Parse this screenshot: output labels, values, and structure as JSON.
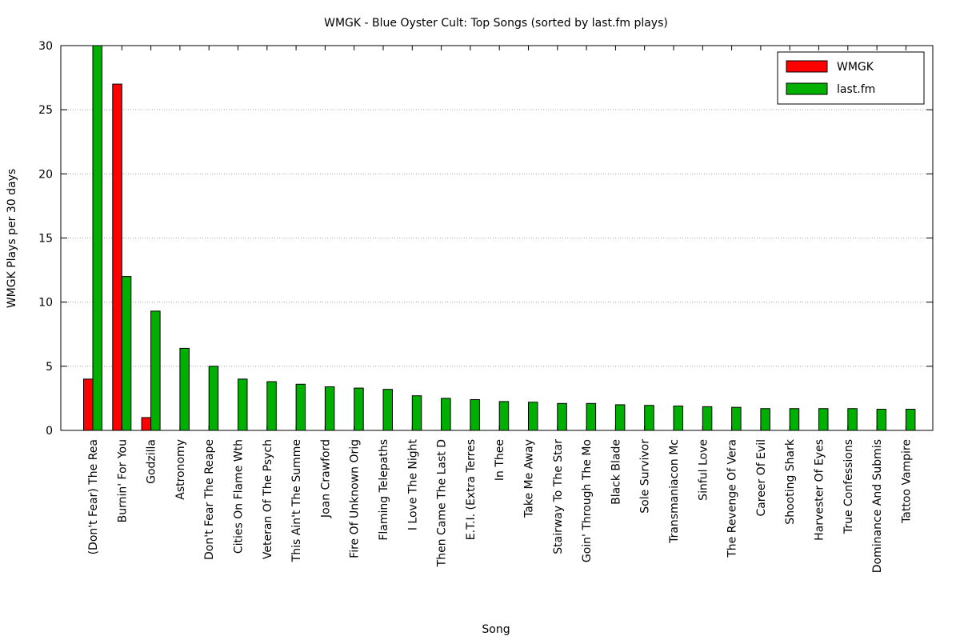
{
  "chart_data": {
    "type": "bar",
    "title": "WMGK - Blue Oyster Cult: Top Songs (sorted by last.fm plays)",
    "xlabel": "Song",
    "ylabel": "WMGK Plays per 30 days",
    "ylim": [
      0,
      30
    ],
    "yticks": [
      0,
      5,
      10,
      15,
      20,
      25,
      30
    ],
    "grid": "horizontal dotted",
    "legend_position": "top-right",
    "categories": [
      "(Don't Fear) The Rea",
      "Burnin' For You",
      "Godzilla",
      "Astronomy",
      "Don't Fear The Reape",
      "Cities On Flame Wth",
      "Veteran Of The Psych",
      "This Ain't The Summe",
      "Joan Crawford",
      "Fire Of Unknown Orig",
      "Flaming Telepaths",
      "I Love The Night",
      "Then Came The Last D",
      "E.T.I. (Extra Terres",
      "In Thee",
      "Take Me Away",
      "Stairway To The Star",
      "Goin' Through The Mo",
      "Black Blade",
      "Sole Survivor",
      "Transmaniacon Mc",
      "Sinful Love",
      "The Revenge Of Vera",
      "Career Of Evil",
      "Shooting Shark",
      "Harvester Of Eyes",
      "True Confessions",
      "Dominance And Submis",
      "Tattoo Vampire"
    ],
    "series": [
      {
        "name": "WMGK",
        "color": "#ff0000",
        "values": [
          4,
          27,
          1,
          0,
          0,
          0,
          0,
          0,
          0,
          0,
          0,
          0,
          0,
          0,
          0,
          0,
          0,
          0,
          0,
          0,
          0,
          0,
          0,
          0,
          0,
          0,
          0,
          0,
          0
        ]
      },
      {
        "name": "last.fm",
        "color": "#00b000",
        "values": [
          30,
          12,
          9.3,
          6.4,
          5,
          4,
          3.8,
          3.6,
          3.4,
          3.3,
          3.2,
          2.7,
          2.5,
          2.4,
          2.25,
          2.2,
          2.1,
          2.1,
          2.0,
          1.95,
          1.9,
          1.85,
          1.8,
          1.7,
          1.7,
          1.7,
          1.7,
          1.65,
          1.65
        ]
      }
    ]
  }
}
